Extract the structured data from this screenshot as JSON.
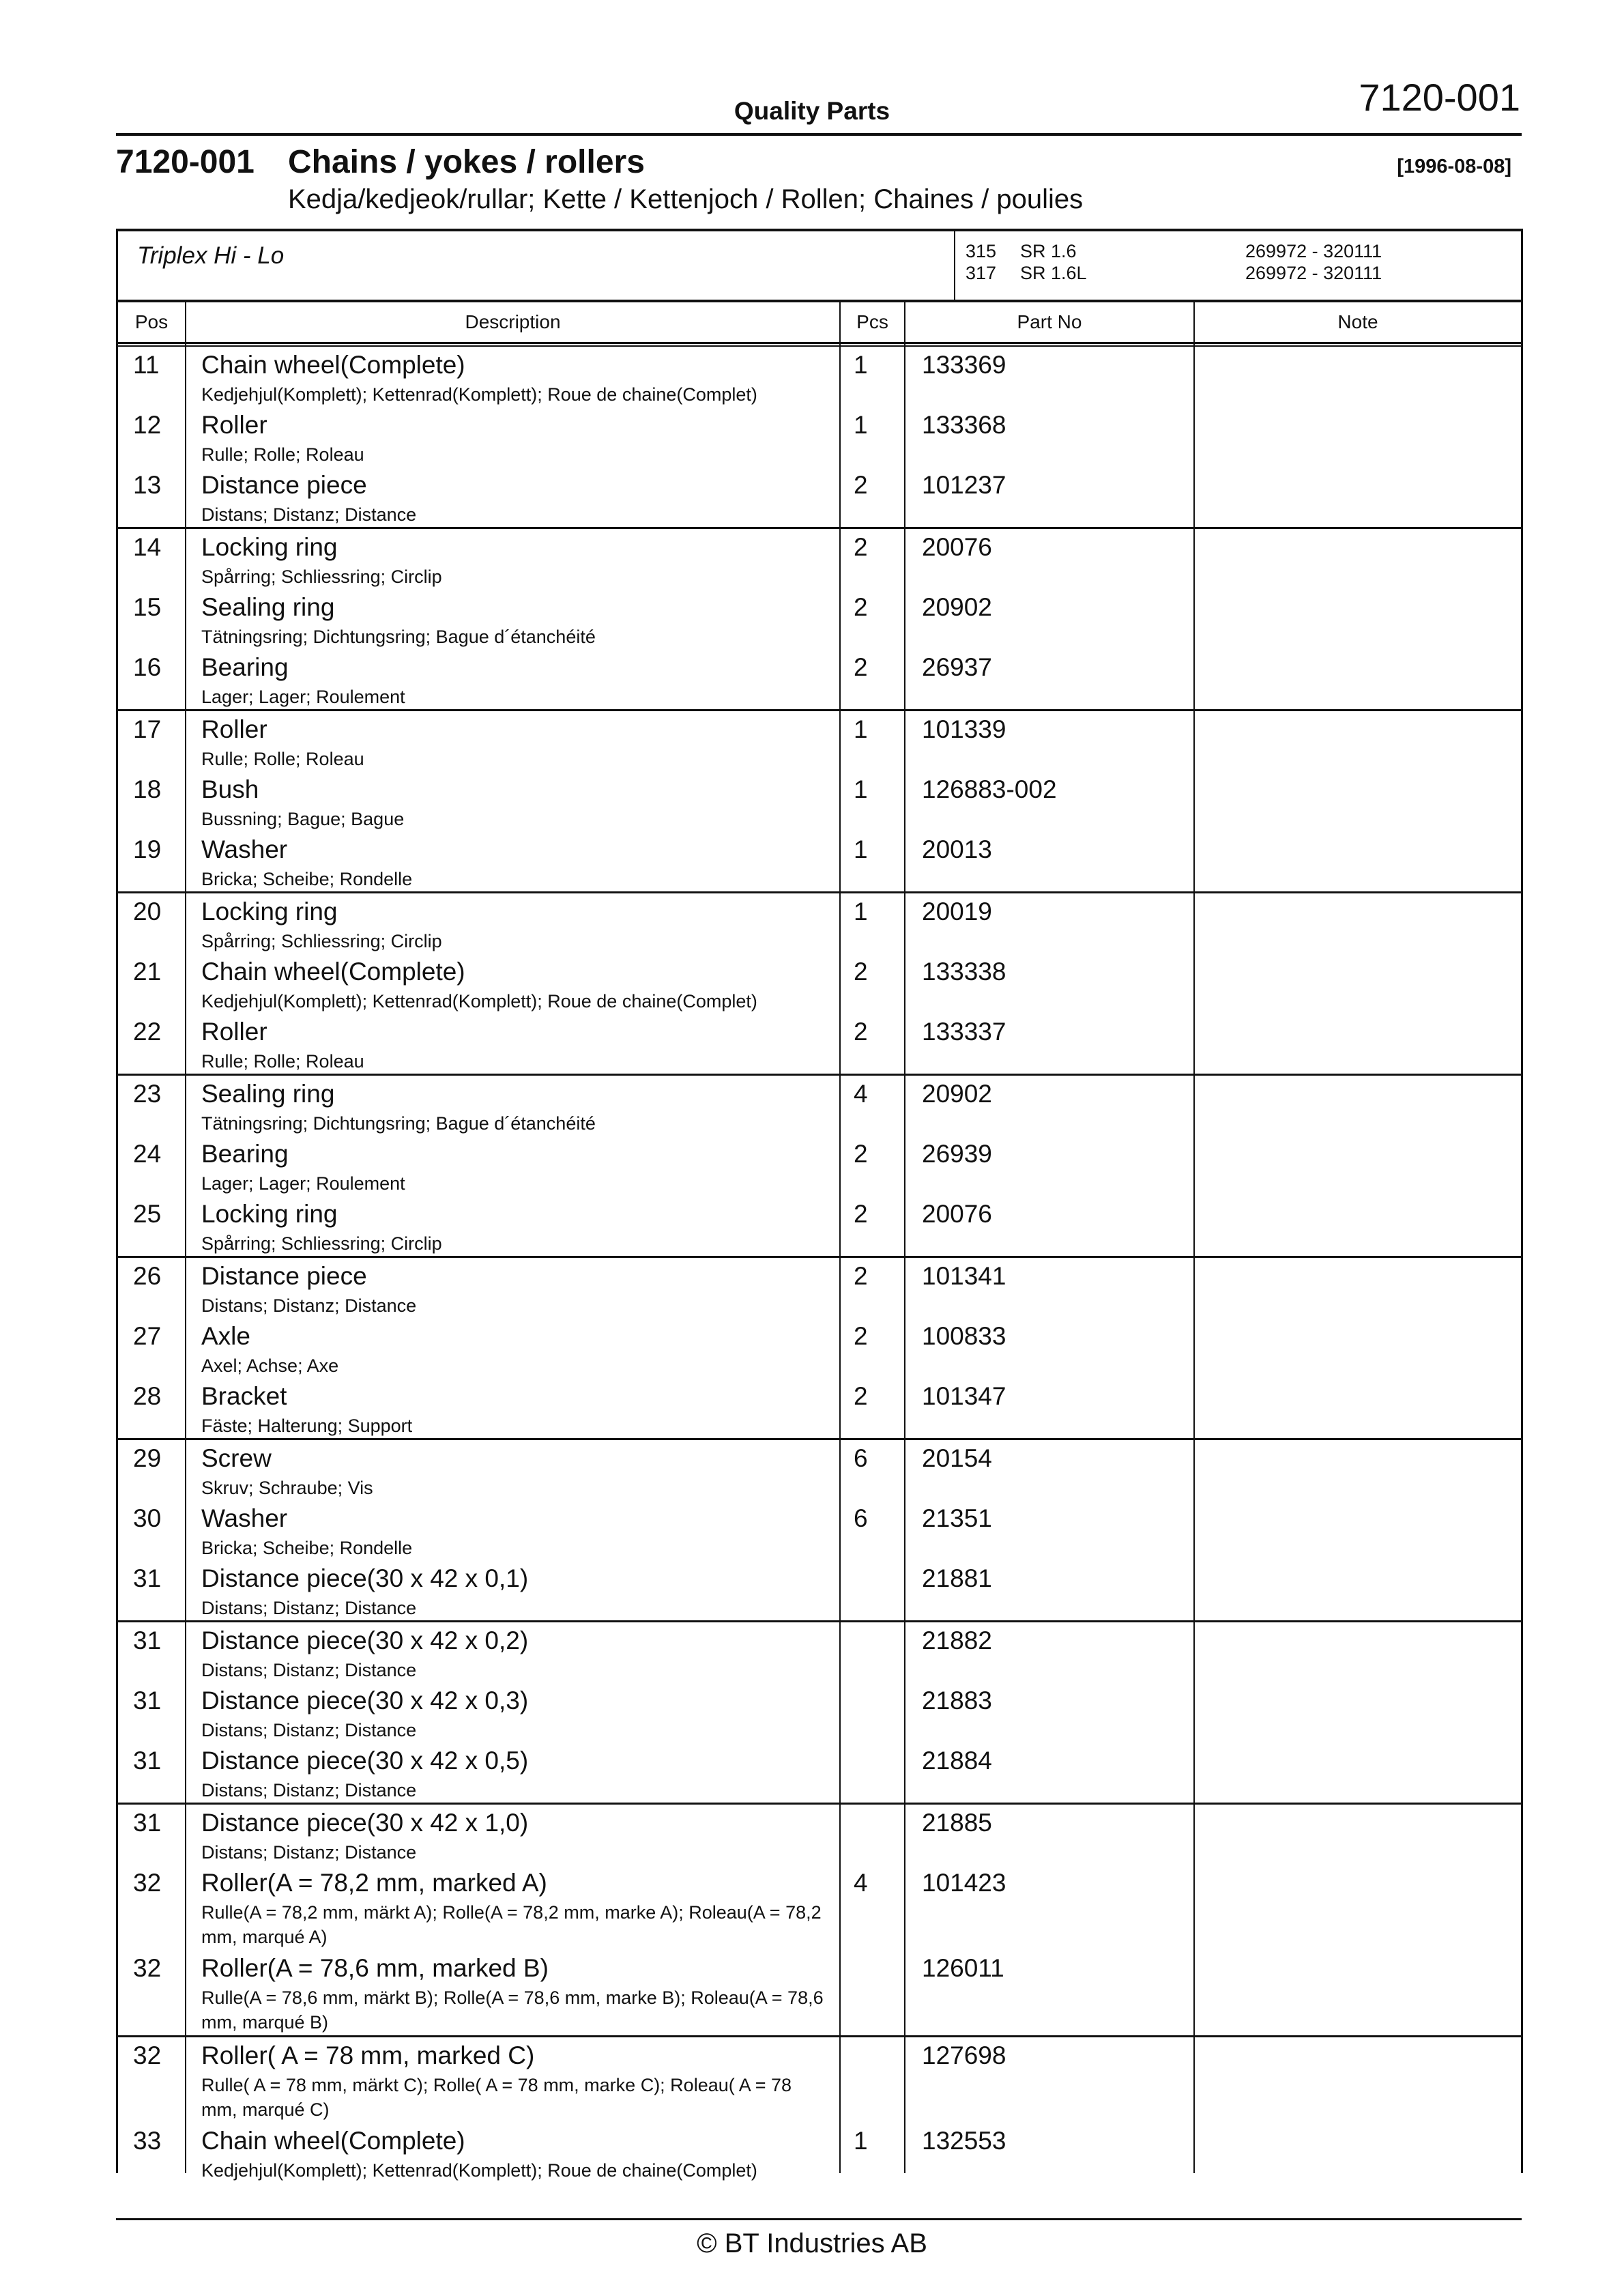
{
  "header": {
    "section": "Quality Parts",
    "page_code": "7120-001"
  },
  "title": {
    "code": "7120-001",
    "text": "Chains / yokes / rollers",
    "date": "[1996-08-08]",
    "subtitle": "Kedja/kedjeok/rullar; Kette / Kettenjoch / Rollen; Chaines / poulies"
  },
  "model": {
    "name": "Triplex Hi - Lo",
    "variants": [
      {
        "code": "315",
        "type": "SR 1.6",
        "serial": "269972 - 320111"
      },
      {
        "code": "317",
        "type": "SR 1.6L",
        "serial": "269972 - 320111"
      }
    ]
  },
  "columns": [
    "Pos",
    "Description",
    "Pcs",
    "Part No",
    "Note"
  ],
  "groups": [
    [
      {
        "pos": "11",
        "name": "Chain wheel(Complete)",
        "sub": "Kedjehjul(Komplett); Kettenrad(Komplett); Roue de chaine(Complet)",
        "pcs": "1",
        "part": "133369"
      },
      {
        "pos": "12",
        "name": "Roller",
        "sub": "Rulle; Rolle; Roleau",
        "pcs": "1",
        "part": "133368"
      },
      {
        "pos": "13",
        "name": "Distance piece",
        "sub": "Distans; Distanz; Distance",
        "pcs": "2",
        "part": "101237"
      }
    ],
    [
      {
        "pos": "14",
        "name": "Locking ring",
        "sub": "Spårring; Schliessring; Circlip",
        "pcs": "2",
        "part": "20076"
      },
      {
        "pos": "15",
        "name": "Sealing ring",
        "sub": "Tätningsring; Dichtungsring; Bague d´étanchéité",
        "pcs": "2",
        "part": "20902"
      },
      {
        "pos": "16",
        "name": "Bearing",
        "sub": "Lager; Lager; Roulement",
        "pcs": "2",
        "part": "26937"
      }
    ],
    [
      {
        "pos": "17",
        "name": "Roller",
        "sub": "Rulle; Rolle; Roleau",
        "pcs": "1",
        "part": "101339"
      },
      {
        "pos": "18",
        "name": "Bush",
        "sub": "Bussning; Bague; Bague",
        "pcs": "1",
        "part": "126883-002"
      },
      {
        "pos": "19",
        "name": "Washer",
        "sub": "Bricka; Scheibe; Rondelle",
        "pcs": "1",
        "part": "20013"
      }
    ],
    [
      {
        "pos": "20",
        "name": "Locking ring",
        "sub": "Spårring; Schliessring; Circlip",
        "pcs": "1",
        "part": "20019"
      },
      {
        "pos": "21",
        "name": "Chain wheel(Complete)",
        "sub": "Kedjehjul(Komplett); Kettenrad(Komplett); Roue de chaine(Complet)",
        "pcs": "2",
        "part": "133338"
      },
      {
        "pos": "22",
        "name": "Roller",
        "sub": "Rulle; Rolle; Roleau",
        "pcs": "2",
        "part": "133337"
      }
    ],
    [
      {
        "pos": "23",
        "name": "Sealing ring",
        "sub": "Tätningsring; Dichtungsring; Bague d´étanchéité",
        "pcs": "4",
        "part": "20902"
      },
      {
        "pos": "24",
        "name": "Bearing",
        "sub": "Lager; Lager; Roulement",
        "pcs": "2",
        "part": "26939"
      },
      {
        "pos": "25",
        "name": "Locking ring",
        "sub": "Spårring; Schliessring; Circlip",
        "pcs": "2",
        "part": "20076"
      }
    ],
    [
      {
        "pos": "26",
        "name": "Distance piece",
        "sub": "Distans; Distanz; Distance",
        "pcs": "2",
        "part": "101341"
      },
      {
        "pos": "27",
        "name": "Axle",
        "sub": "Axel; Achse; Axe",
        "pcs": "2",
        "part": "100833"
      },
      {
        "pos": "28",
        "name": "Bracket",
        "sub": "Fäste; Halterung; Support",
        "pcs": "2",
        "part": "101347"
      }
    ],
    [
      {
        "pos": "29",
        "name": "Screw",
        "sub": "Skruv; Schraube; Vis",
        "pcs": "6",
        "part": "20154"
      },
      {
        "pos": "30",
        "name": "Washer",
        "sub": "Bricka; Scheibe; Rondelle",
        "pcs": "6",
        "part": "21351"
      },
      {
        "pos": "31",
        "name": "Distance piece(30 x 42 x 0,1)",
        "sub": "Distans; Distanz; Distance",
        "pcs": "",
        "part": "21881"
      }
    ],
    [
      {
        "pos": "31",
        "name": "Distance piece(30 x 42 x 0,2)",
        "sub": "Distans; Distanz; Distance",
        "pcs": "",
        "part": "21882"
      },
      {
        "pos": "31",
        "name": "Distance piece(30 x 42 x 0,3)",
        "sub": "Distans; Distanz; Distance",
        "pcs": "",
        "part": "21883"
      },
      {
        "pos": "31",
        "name": "Distance piece(30 x 42 x 0,5)",
        "sub": "Distans; Distanz; Distance",
        "pcs": "",
        "part": "21884"
      }
    ],
    [
      {
        "pos": "31",
        "name": "Distance piece(30 x 42 x 1,0)",
        "sub": "Distans; Distanz; Distance",
        "pcs": "",
        "part": "21885"
      },
      {
        "pos": "32",
        "name": "Roller(A = 78,2 mm,  marked A)",
        "sub": "Rulle(A = 78,2 mm,  märkt A); Rolle(A = 78,2 mm,  marke A); Roleau(A = 78,2 mm,  marqué A)",
        "pcs": "4",
        "part": "101423"
      },
      {
        "pos": "32",
        "name": "Roller(A = 78,6 mm,  marked B)",
        "sub": "Rulle(A = 78,6 mm,  märkt B); Rolle(A = 78,6 mm,  marke B); Roleau(A = 78,6 mm,  marqué B)",
        "pcs": "",
        "part": "126011"
      }
    ],
    [
      {
        "pos": "32",
        "name": "Roller( A = 78 mm,  marked C)",
        "sub": "Rulle( A = 78 mm,  märkt C); Rolle( A = 78 mm,  marke C); Roleau( A = 78 mm, marqué C)",
        "pcs": "",
        "part": "127698"
      },
      {
        "pos": "33",
        "name": "Chain wheel(Complete)",
        "sub": "Kedjehjul(Komplett); Kettenrad(Komplett); Roue de chaine(Complet)",
        "pcs": "1",
        "part": "132553"
      }
    ]
  ],
  "footer": {
    "copyright": "© BT Industries AB"
  }
}
